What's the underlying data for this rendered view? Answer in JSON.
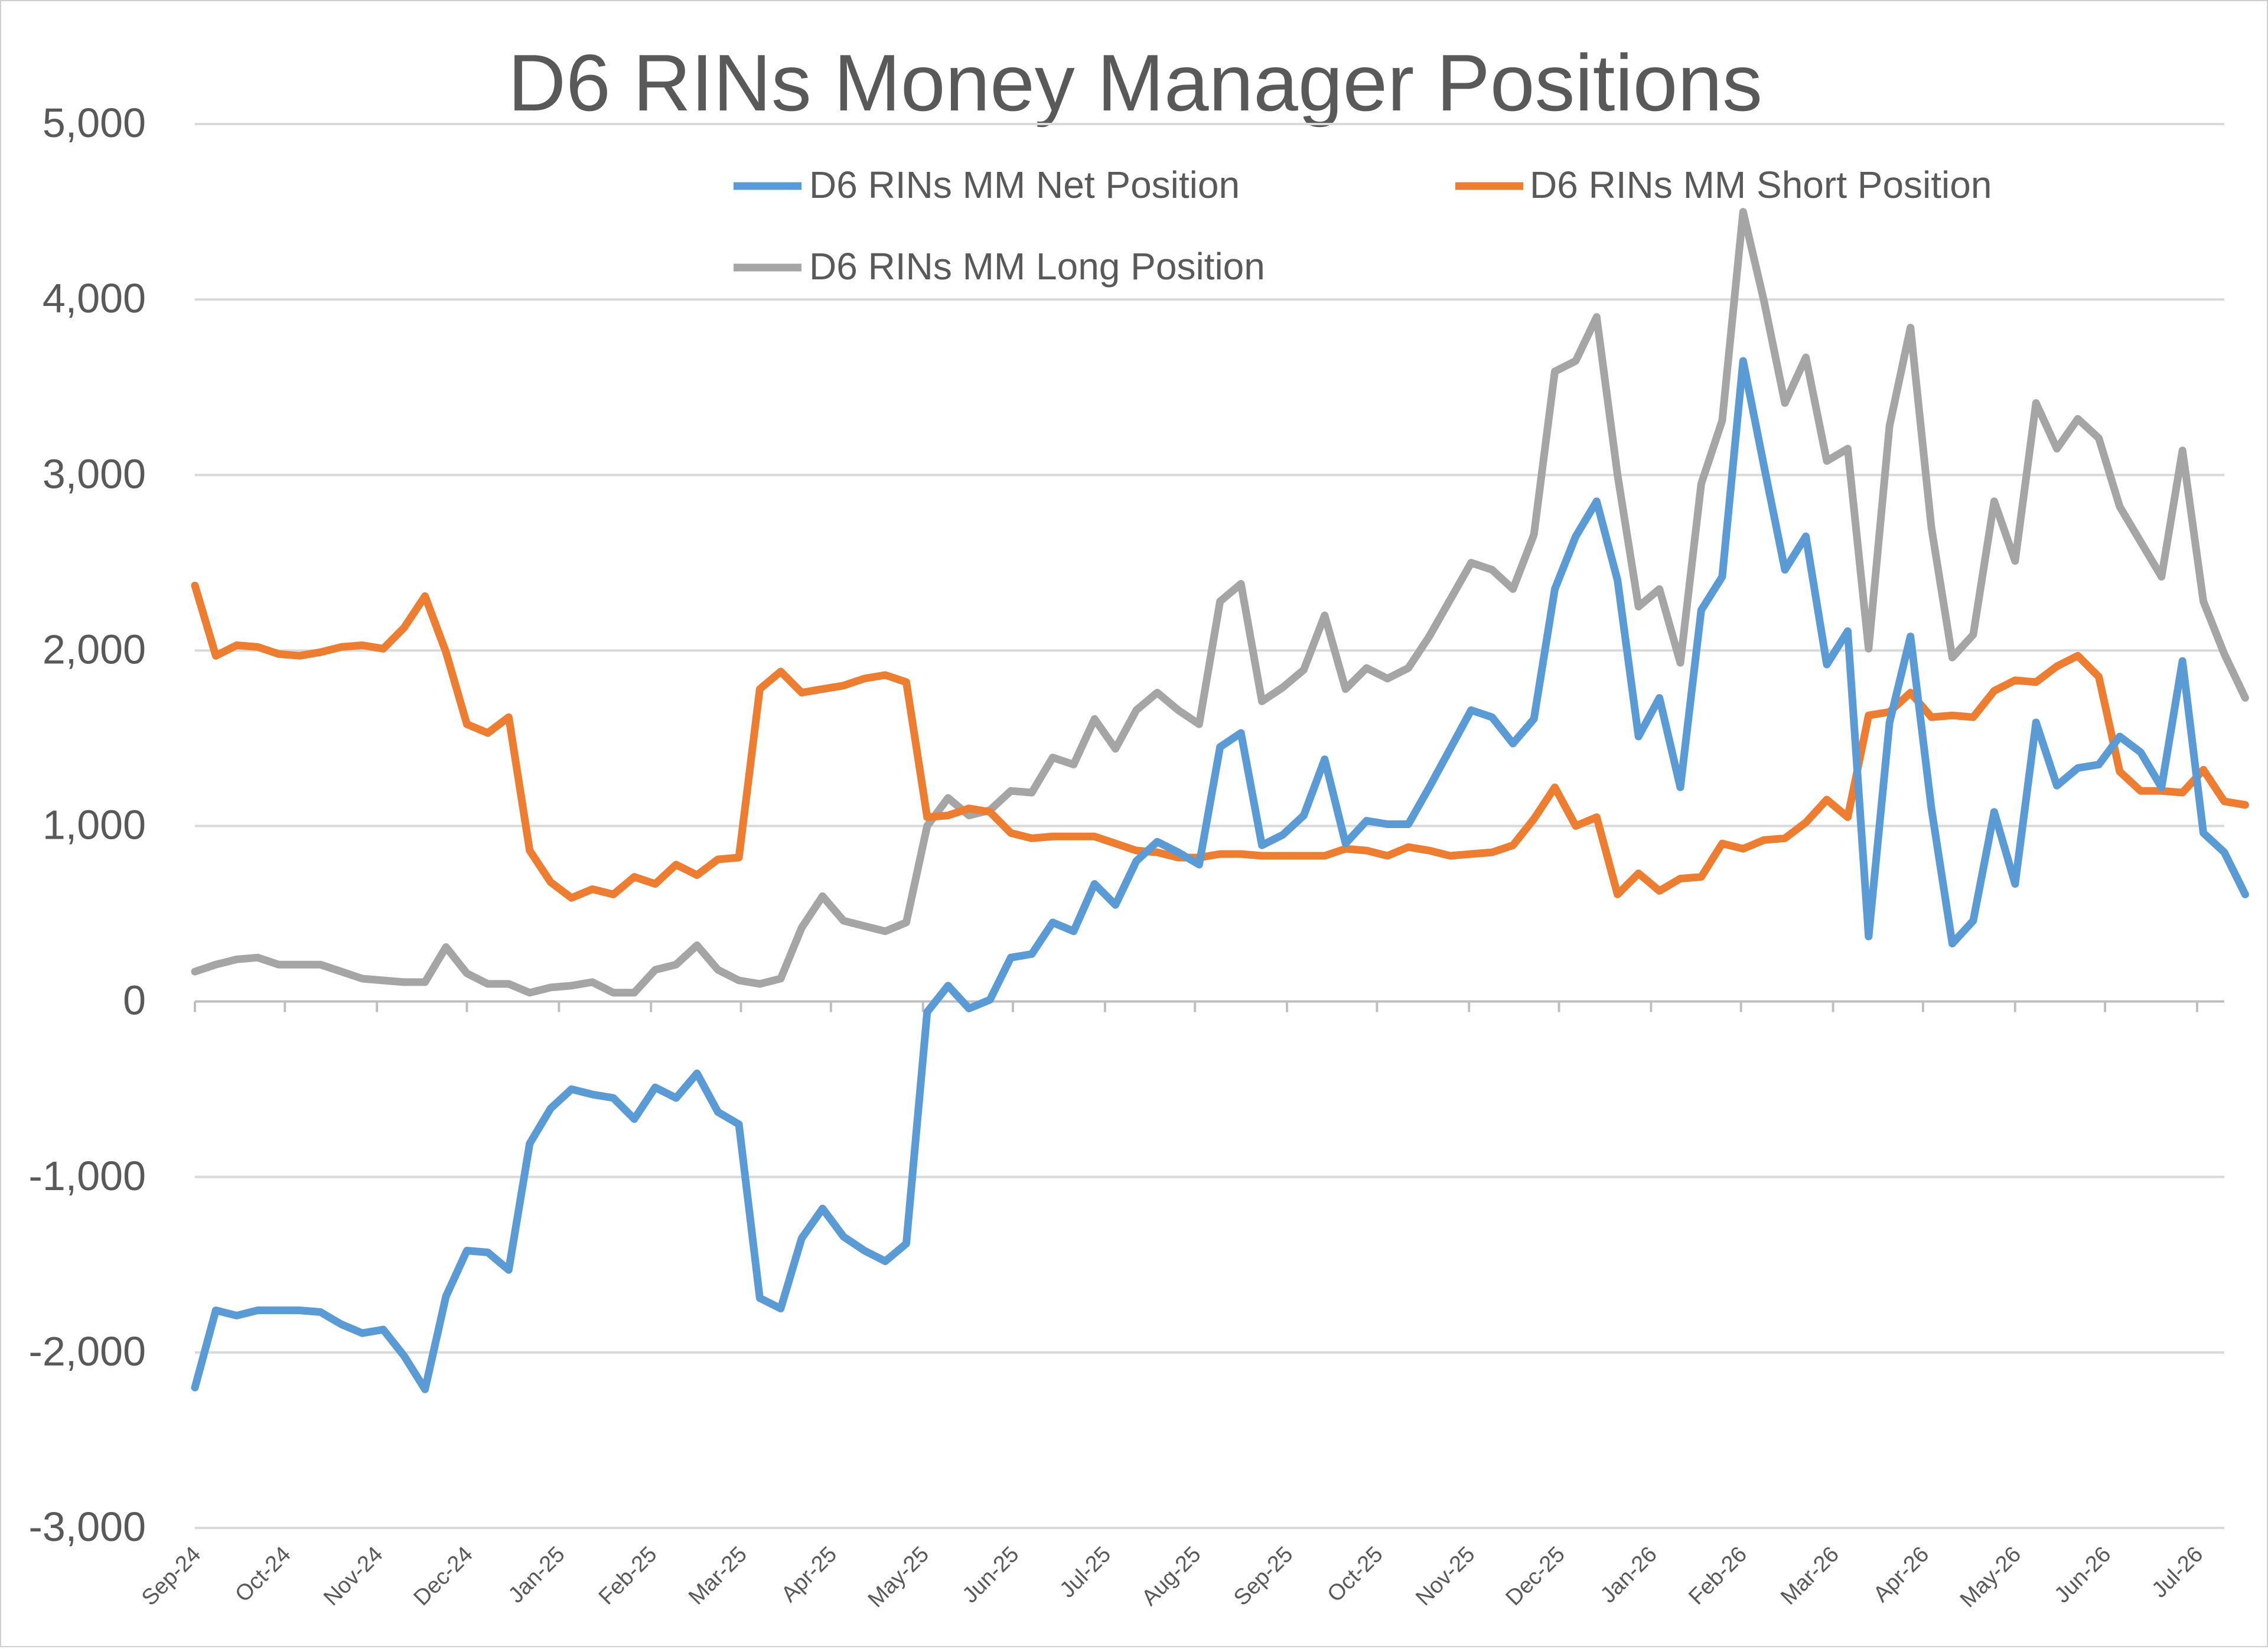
{
  "chart_data": {
    "type": "line",
    "title": "D6 RINs Money Manager Positions",
    "xlabel": "",
    "ylabel": "",
    "ylim": [
      -3000,
      5000
    ],
    "y_ticks": [
      "5,000",
      "4,000",
      "3,000",
      "2,000",
      "1,000",
      "0",
      "-1,000",
      "-2,000",
      "-3,000"
    ],
    "y_tick_values": [
      5000,
      4000,
      3000,
      2000,
      1000,
      0,
      -1000,
      -2000,
      -3000
    ],
    "gridlines": true,
    "legend_position": "top",
    "x_tick_labels": [
      "Sep-24",
      "Oct-24",
      "Nov-24",
      "Dec-24",
      "Jan-25",
      "Feb-25",
      "Mar-25",
      "Apr-25",
      "May-25",
      "Jun-25",
      "Jul-25",
      "Aug-25",
      "Sep-25",
      "Oct-25",
      "Nov-25",
      "Dec-25",
      "Jan-26",
      "Feb-26",
      "Mar-26",
      "Apr-26",
      "May-26",
      "Jun-26",
      "Jul-26"
    ],
    "x_label_weeks": [
      0,
      4.3,
      8.7,
      13,
      17.4,
      21.8,
      26.1,
      30.4,
      34.8,
      39.1,
      43.5,
      47.8,
      52.2,
      56.5,
      60.9,
      65.2,
      69.6,
      73.9,
      78.3,
      82.6,
      87,
      91.3,
      95.7
    ],
    "x_week_count": 98,
    "series": [
      {
        "name": "D6 RINs MM Net Position",
        "color": "#5b9bd5",
        "values": [
          -2200,
          -1760,
          -1790,
          -1760,
          -1760,
          -1760,
          -1770,
          -1840,
          -1890,
          -1870,
          -2020,
          -2210,
          -1680,
          -1420,
          -1430,
          -1530,
          -810,
          -610,
          -500,
          -530,
          -550,
          -670,
          -490,
          -550,
          -410,
          -630,
          -700,
          -1690,
          -1750,
          -1350,
          -1180,
          -1340,
          -1420,
          -1480,
          -1380,
          -60,
          90,
          -40,
          10,
          250,
          270,
          450,
          400,
          670,
          550,
          800,
          910,
          850,
          780,
          1450,
          1530,
          890,
          950,
          1060,
          1380,
          900,
          1030,
          1010,
          1010,
          1220,
          1440,
          1660,
          1620,
          1470,
          1610,
          2350,
          2650,
          2850,
          2400,
          1510,
          1730,
          1220,
          2230,
          2420,
          3650,
          3050,
          2460,
          2650,
          1920,
          2110,
          370,
          1590,
          2080,
          1100,
          330,
          460,
          1080,
          670,
          1590,
          1230,
          1330,
          1350,
          1510,
          1420,
          1220,
          1940,
          960,
          850,
          610
        ]
      },
      {
        "name": "D6 RINs MM Short Position",
        "color": "#ed7d31",
        "values": [
          2370,
          1970,
          2030,
          2020,
          1980,
          1970,
          1990,
          2020,
          2030,
          2010,
          2130,
          2310,
          1990,
          1580,
          1530,
          1620,
          860,
          680,
          590,
          640,
          610,
          710,
          670,
          780,
          720,
          810,
          820,
          1780,
          1880,
          1760,
          1780,
          1800,
          1840,
          1860,
          1820,
          1050,
          1060,
          1100,
          1080,
          960,
          930,
          940,
          940,
          940,
          900,
          860,
          850,
          820,
          820,
          840,
          840,
          830,
          830,
          830,
          830,
          870,
          860,
          830,
          880,
          860,
          830,
          840,
          850,
          890,
          1040,
          1220,
          1000,
          1050,
          610,
          730,
          630,
          700,
          710,
          900,
          870,
          920,
          930,
          1020,
          1150,
          1050,
          1630,
          1650,
          1760,
          1620,
          1630,
          1620,
          1770,
          1830,
          1820,
          1910,
          1970,
          1850,
          1310,
          1200,
          1200,
          1190,
          1320,
          1140,
          1120
        ]
      },
      {
        "name": "D6 RINs MM Long Position",
        "color": "#a5a5a5",
        "values": [
          170,
          210,
          240,
          250,
          210,
          210,
          210,
          170,
          130,
          120,
          110,
          110,
          310,
          160,
          100,
          100,
          50,
          80,
          90,
          110,
          50,
          50,
          180,
          210,
          320,
          180,
          120,
          100,
          130,
          420,
          600,
          460,
          430,
          400,
          450,
          1000,
          1160,
          1060,
          1090,
          1200,
          1190,
          1390,
          1350,
          1610,
          1440,
          1660,
          1760,
          1660,
          1580,
          2280,
          2380,
          1710,
          1790,
          1890,
          2200,
          1780,
          1900,
          1840,
          1900,
          2080,
          2290,
          2500,
          2460,
          2350,
          2660,
          3590,
          3650,
          3900,
          3000,
          2250,
          2350,
          1930,
          2950,
          3310,
          4500,
          3990,
          3410,
          3670,
          3080,
          3150,
          2010,
          3280,
          3840,
          2700,
          1960,
          2090,
          2850,
          2510,
          3410,
          3150,
          3320,
          3210,
          2820,
          2620,
          2420,
          3140,
          2280,
          1980,
          1730
        ]
      }
    ]
  }
}
